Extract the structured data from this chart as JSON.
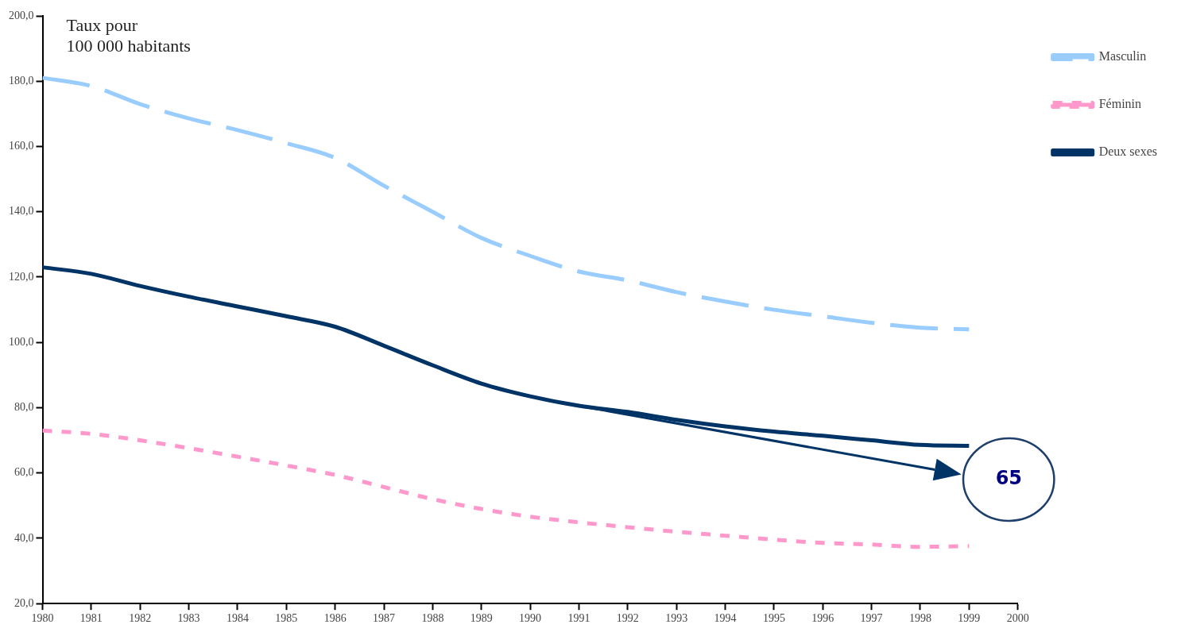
{
  "chart_data": {
    "type": "line",
    "ylabel": "Taux pour\n100 000 habitants",
    "x": [
      1980,
      1981,
      1982,
      1983,
      1984,
      1985,
      1986,
      1987,
      1988,
      1989,
      1990,
      1991,
      1992,
      1993,
      1994,
      1995,
      1996,
      1997,
      1998,
      1999
    ],
    "series": [
      {
        "name": "Masculin",
        "color": "#99ccff",
        "line_style": "dashed",
        "values": [
          181,
          178.5,
          173,
          168.6,
          165,
          161,
          156.5,
          148,
          140,
          132,
          126.5,
          121.7,
          119,
          115.4,
          112.5,
          110,
          108,
          106,
          104.5,
          104
        ]
      },
      {
        "name": "Féminin",
        "color": "#ff99cc",
        "line_style": "dotted",
        "values": [
          73,
          72,
          70,
          67.6,
          65,
          62.3,
          59.4,
          55.7,
          52,
          49,
          46.6,
          44.9,
          43.4,
          42,
          40.8,
          39.6,
          38.6,
          38.1,
          37.4,
          37.6
        ]
      },
      {
        "name": "Deux sexes",
        "color": "#003366",
        "line_style": "solid",
        "values": [
          123,
          121,
          117.3,
          114,
          111,
          108,
          104.8,
          99,
          93,
          87.4,
          83.5,
          80.6,
          78.7,
          76.3,
          74.3,
          72.7,
          71.4,
          70,
          68.6,
          68.3
        ]
      }
    ],
    "annotations": [
      "65"
    ],
    "xlim": [
      1980,
      2000
    ],
    "xticks": [
      1980,
      1981,
      1982,
      1983,
      1984,
      1985,
      1986,
      1987,
      1988,
      1989,
      1990,
      1991,
      1992,
      1993,
      1994,
      1995,
      1996,
      1997,
      1998,
      1999,
      2000
    ],
    "ylim": [
      20,
      200
    ],
    "yticks": [
      {
        "value": 20,
        "label": "20,0"
      },
      {
        "value": 40,
        "label": "40,0"
      },
      {
        "value": 60,
        "label": "60,0"
      },
      {
        "value": 80,
        "label": "80,0"
      },
      {
        "value": 100,
        "label": "100,0"
      },
      {
        "value": 120,
        "label": "120,0"
      },
      {
        "value": 140,
        "label": "140,0"
      },
      {
        "value": 160,
        "label": "160,0"
      },
      {
        "value": 180,
        "label": "180,0"
      },
      {
        "value": 200,
        "label": "200,0"
      }
    ],
    "grid": false,
    "legend": "top right",
    "marker": "none"
  }
}
